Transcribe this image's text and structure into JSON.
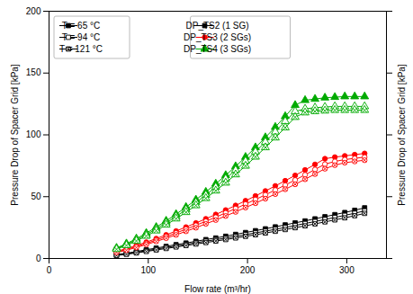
{
  "chart_data": {
    "type": "line",
    "xlabel": "Flow rate (m³/hr)",
    "ylabel": "Pressure Drop of Spacer Grid [kPa]",
    "y2label": "Pressure Drop of Spacer Grid [kPa]",
    "x": [
      68,
      78,
      88,
      98,
      108,
      118,
      128,
      138,
      148,
      158,
      168,
      178,
      188,
      198,
      208,
      218,
      228,
      238,
      248,
      258,
      268,
      278,
      288,
      298,
      308,
      318
    ],
    "xlim": [
      0,
      340
    ],
    "ylim": [
      0,
      200
    ],
    "xticks": [
      0,
      100,
      200,
      300
    ],
    "yticks": [
      0,
      50,
      100,
      150,
      200
    ],
    "grid": false,
    "legend": "upper left",
    "series": [
      {
        "name": "DP_TS2 (1 SG)",
        "temperature": "T = 65 °C",
        "color": "#000000",
        "marker": "square",
        "values": [
          3.2,
          4.3,
          5.6,
          7.1,
          8.4,
          9.8,
          11.2,
          12.5,
          13.9,
          15.3,
          16.6,
          18.0,
          19.5,
          21.0,
          22.5,
          24.0,
          25.6,
          27.2,
          28.8,
          30.4,
          32.1,
          33.8,
          35.5,
          37.2,
          39.0,
          41.0
        ]
      },
      {
        "name": "DP_TS2 (1 SG)",
        "temperature": "T = 94 °C",
        "color": "#000000",
        "marker": "square-open",
        "values": [
          2.8,
          3.8,
          5.0,
          6.3,
          7.6,
          8.9,
          10.1,
          11.4,
          12.7,
          14.0,
          15.2,
          16.5,
          17.9,
          19.3,
          20.7,
          22.1,
          23.6,
          25.1,
          26.7,
          28.3,
          29.9,
          31.5,
          33.2,
          34.9,
          36.6,
          38.5
        ]
      },
      {
        "name": "DP_TS2 (1 SG)",
        "temperature": "T = 121 °C",
        "color": "#000000",
        "marker": "square-x",
        "values": [
          2.4,
          3.4,
          4.5,
          5.7,
          6.9,
          8.1,
          9.3,
          10.5,
          11.7,
          12.9,
          14.1,
          15.3,
          16.6,
          17.9,
          19.2,
          20.6,
          22.0,
          23.4,
          24.9,
          26.4,
          28.0,
          29.6,
          31.2,
          32.9,
          34.6,
          36.5
        ]
      },
      {
        "name": "DP_TS3 (2 SGs)",
        "temperature": "T = 65 °C",
        "color": "#ff0000",
        "marker": "circle",
        "values": [
          5.8,
          8.0,
          10.5,
          13.2,
          16.1,
          19.1,
          22.2,
          25.4,
          28.7,
          32.1,
          35.6,
          39.2,
          42.9,
          46.7,
          50.6,
          54.6,
          58.7,
          62.9,
          67.2,
          71.6,
          76.1,
          80.7,
          82.0,
          83.0,
          84.0,
          85.0
        ]
      },
      {
        "name": "DP_TS3 (2 SGs)",
        "temperature": "T = 94 °C",
        "color": "#ff0000",
        "marker": "circle-open",
        "values": [
          5.3,
          7.3,
          9.7,
          12.2,
          14.9,
          17.7,
          20.6,
          23.7,
          26.8,
          30.1,
          33.4,
          36.9,
          40.4,
          44.0,
          47.7,
          51.5,
          55.4,
          59.4,
          63.5,
          67.7,
          72.0,
          76.3,
          78.5,
          80.0,
          81.0,
          82.0
        ]
      },
      {
        "name": "DP_TS3 (2 SGs)",
        "temperature": "T = 121 °C",
        "color": "#ff0000",
        "marker": "circle-x",
        "values": [
          4.8,
          6.7,
          8.9,
          11.3,
          13.8,
          16.4,
          19.1,
          22.0,
          24.9,
          28.0,
          31.1,
          34.4,
          37.7,
          41.2,
          44.7,
          48.4,
          52.1,
          56.0,
          60.0,
          64.1,
          68.3,
          72.6,
          75.5,
          77.5,
          78.5,
          79.5
        ]
      },
      {
        "name": "DP_TS4 (3 SGs)",
        "temperature": "T = 65 °C",
        "color": "#00aa00",
        "marker": "triangle",
        "values": [
          8.5,
          12.0,
          16.0,
          20.5,
          25.3,
          30.4,
          35.8,
          41.5,
          47.5,
          53.8,
          60.4,
          67.3,
          74.5,
          82.0,
          89.8,
          97.9,
          106.3,
          115.0,
          124.0,
          128.0,
          129.0,
          130.0,
          130.5,
          131.0,
          131.0,
          131.0
        ]
      },
      {
        "name": "DP_TS4 (3 SGs)",
        "temperature": "T = 94 °C",
        "color": "#00aa00",
        "marker": "triangle-open",
        "values": [
          8.0,
          11.3,
          15.1,
          19.3,
          23.9,
          28.8,
          34.0,
          39.5,
          45.3,
          51.4,
          57.8,
          64.5,
          71.5,
          78.8,
          86.4,
          94.3,
          102.5,
          111.0,
          119.0,
          121.0,
          122.0,
          122.5,
          123.0,
          123.0,
          123.0,
          123.0
        ]
      },
      {
        "name": "DP_TS4 (3 SGs)",
        "temperature": "T = 121 °C",
        "color": "#00aa00",
        "marker": "triangle-x",
        "values": [
          7.5,
          10.6,
          14.2,
          18.2,
          22.5,
          27.2,
          32.2,
          37.4,
          42.9,
          48.7,
          54.8,
          61.2,
          67.9,
          74.9,
          82.2,
          89.8,
          97.7,
          105.9,
          114.3,
          118.0,
          119.0,
          119.5,
          120.0,
          120.0,
          120.0,
          120.0
        ]
      }
    ]
  }
}
